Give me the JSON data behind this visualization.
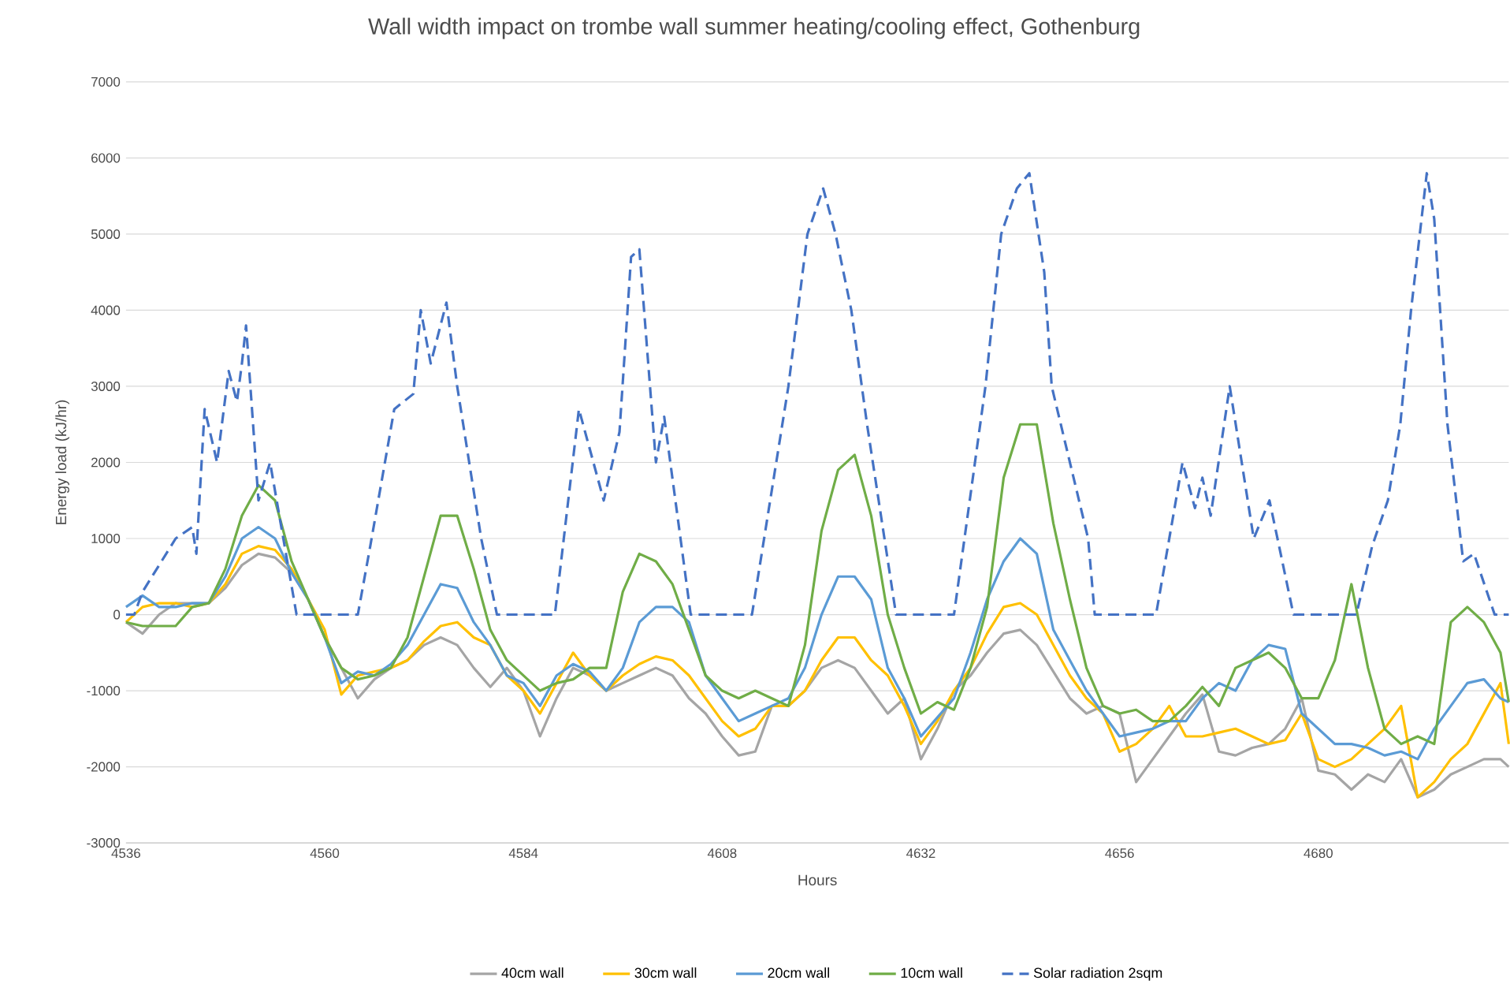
{
  "chart_data": {
    "type": "line",
    "title": "Wall width impact on trombe wall summer heating/cooling effect, Gothenburg",
    "xlabel": "Hours",
    "ylabel": "Energy load (kJ/hr)",
    "xlim": [
      4536,
      4703
    ],
    "xticks": [
      4536,
      4560,
      4584,
      4608,
      4632,
      4656,
      4680
    ],
    "ylim": [
      -3000,
      7000
    ],
    "yticks": [
      -3000,
      -2000,
      -1000,
      0,
      1000,
      2000,
      3000,
      4000,
      5000,
      6000,
      7000
    ],
    "grid": "y",
    "legend": "bottom",
    "marker": "none",
    "series": [
      {
        "name": "40cm wall",
        "color": "#a5a5a5",
        "line_style": "solid",
        "x": [
          4536,
          4538,
          4540,
          4542,
          4544,
          4546,
          4548,
          4550,
          4552,
          4554,
          4556,
          4558,
          4560,
          4562,
          4564,
          4566,
          4568,
          4570,
          4572,
          4574,
          4576,
          4578,
          4580,
          4582,
          4584,
          4586,
          4588,
          4590,
          4592,
          4594,
          4596,
          4598,
          4600,
          4602,
          4604,
          4606,
          4608,
          4610,
          4612,
          4614,
          4616,
          4618,
          4620,
          4622,
          4624,
          4626,
          4628,
          4630,
          4632,
          4634,
          4636,
          4638,
          4640,
          4642,
          4644,
          4646,
          4648,
          4650,
          4652,
          4654,
          4656,
          4658,
          4660,
          4662,
          4664,
          4666,
          4668,
          4670,
          4672,
          4674,
          4676,
          4678,
          4680,
          4682,
          4684,
          4686,
          4688,
          4690,
          4692,
          4694,
          4696,
          4698,
          4700,
          4702,
          4703
        ],
        "values": [
          -100,
          -250,
          0,
          150,
          150,
          150,
          350,
          650,
          800,
          750,
          550,
          200,
          -300,
          -700,
          -1100,
          -850,
          -700,
          -600,
          -400,
          -300,
          -400,
          -700,
          -950,
          -700,
          -1000,
          -1600,
          -1100,
          -700,
          -800,
          -1000,
          -900,
          -800,
          -700,
          -800,
          -1100,
          -1300,
          -1600,
          -1850,
          -1800,
          -1200,
          -1200,
          -1000,
          -700,
          -600,
          -700,
          -1000,
          -1300,
          -1100,
          -1900,
          -1500,
          -1000,
          -800,
          -500,
          -250,
          -200,
          -400,
          -750,
          -1100,
          -1300,
          -1200,
          -1300,
          -2200,
          -1900,
          -1600,
          -1300,
          -1050,
          -1800,
          -1850,
          -1750,
          -1700,
          -1500,
          -1100,
          -2050,
          -2100,
          -2300,
          -2100,
          -2200,
          -1900,
          -2400,
          -2300,
          -2100,
          -2000,
          -1900,
          -1900,
          -2000
        ]
      },
      {
        "name": "30cm wall",
        "color": "#ffc000",
        "line_style": "solid",
        "x": [
          4536,
          4538,
          4540,
          4542,
          4544,
          4546,
          4548,
          4550,
          4552,
          4554,
          4556,
          4558,
          4560,
          4562,
          4564,
          4566,
          4568,
          4570,
          4572,
          4574,
          4576,
          4578,
          4580,
          4582,
          4584,
          4586,
          4588,
          4590,
          4592,
          4594,
          4596,
          4598,
          4600,
          4602,
          4604,
          4606,
          4608,
          4610,
          4612,
          4614,
          4616,
          4618,
          4620,
          4622,
          4624,
          4626,
          4628,
          4630,
          4632,
          4634,
          4636,
          4638,
          4640,
          4642,
          4644,
          4646,
          4648,
          4650,
          4652,
          4654,
          4656,
          4658,
          4660,
          4662,
          4664,
          4666,
          4668,
          4670,
          4672,
          4674,
          4676,
          4678,
          4680,
          4682,
          4684,
          4686,
          4688,
          4690,
          4692,
          4694,
          4696,
          4698,
          4700,
          4702,
          4703
        ],
        "values": [
          -100,
          100,
          150,
          150,
          100,
          150,
          400,
          800,
          900,
          850,
          600,
          200,
          -200,
          -1050,
          -800,
          -750,
          -700,
          -600,
          -350,
          -150,
          -100,
          -300,
          -400,
          -800,
          -1000,
          -1300,
          -900,
          -500,
          -800,
          -1000,
          -800,
          -650,
          -550,
          -600,
          -800,
          -1100,
          -1400,
          -1600,
          -1500,
          -1200,
          -1200,
          -1000,
          -600,
          -300,
          -300,
          -600,
          -800,
          -1200,
          -1700,
          -1400,
          -1000,
          -700,
          -250,
          100,
          150,
          0,
          -400,
          -800,
          -1100,
          -1300,
          -1800,
          -1700,
          -1500,
          -1200,
          -1600,
          -1600,
          -1550,
          -1500,
          -1600,
          -1700,
          -1650,
          -1300,
          -1900,
          -2000,
          -1900,
          -1700,
          -1500,
          -1200,
          -2400,
          -2200,
          -1900,
          -1700,
          -1300,
          -900,
          -1700
        ]
      },
      {
        "name": "20cm wall",
        "color": "#5b9bd5",
        "line_style": "solid",
        "x": [
          4536,
          4538,
          4540,
          4542,
          4544,
          4546,
          4548,
          4550,
          4552,
          4554,
          4556,
          4558,
          4560,
          4562,
          4564,
          4566,
          4568,
          4570,
          4572,
          4574,
          4576,
          4578,
          4580,
          4582,
          4584,
          4586,
          4588,
          4590,
          4592,
          4594,
          4596,
          4598,
          4600,
          4602,
          4604,
          4606,
          4608,
          4610,
          4612,
          4614,
          4616,
          4618,
          4620,
          4622,
          4624,
          4626,
          4628,
          4630,
          4632,
          4634,
          4636,
          4638,
          4640,
          4642,
          4644,
          4646,
          4648,
          4650,
          4652,
          4654,
          4656,
          4658,
          4660,
          4662,
          4664,
          4666,
          4668,
          4670,
          4672,
          4674,
          4676,
          4678,
          4680,
          4682,
          4684,
          4686,
          4688,
          4690,
          4692,
          4694,
          4696,
          4698,
          4700,
          4702,
          4703
        ],
        "values": [
          100,
          250,
          100,
          100,
          150,
          150,
          500,
          1000,
          1150,
          1000,
          550,
          200,
          -300,
          -900,
          -750,
          -800,
          -650,
          -400,
          0,
          400,
          350,
          -100,
          -400,
          -800,
          -900,
          -1200,
          -800,
          -650,
          -750,
          -1000,
          -700,
          -100,
          100,
          100,
          -100,
          -800,
          -1100,
          -1400,
          -1300,
          -1200,
          -1100,
          -700,
          0,
          500,
          500,
          200,
          -700,
          -1100,
          -1600,
          -1350,
          -1100,
          -500,
          200,
          700,
          1000,
          800,
          -200,
          -600,
          -1000,
          -1300,
          -1600,
          -1550,
          -1500,
          -1400,
          -1400,
          -1100,
          -900,
          -1000,
          -600,
          -400,
          -450,
          -1300,
          -1500,
          -1700,
          -1700,
          -1750,
          -1850,
          -1800,
          -1900,
          -1500,
          -1200,
          -900,
          -850,
          -1100,
          -1150
        ]
      },
      {
        "name": "10cm wall",
        "color": "#70ad47",
        "line_style": "solid",
        "x": [
          4536,
          4538,
          4540,
          4542,
          4544,
          4546,
          4548,
          4550,
          4552,
          4554,
          4556,
          4558,
          4560,
          4562,
          4564,
          4566,
          4568,
          4570,
          4572,
          4574,
          4576,
          4578,
          4580,
          4582,
          4584,
          4586,
          4588,
          4590,
          4592,
          4594,
          4596,
          4598,
          4600,
          4602,
          4604,
          4606,
          4608,
          4610,
          4612,
          4614,
          4616,
          4618,
          4620,
          4622,
          4624,
          4626,
          4628,
          4630,
          4632,
          4634,
          4636,
          4638,
          4640,
          4642,
          4644,
          4646,
          4648,
          4650,
          4652,
          4654,
          4656,
          4658,
          4660,
          4662,
          4664,
          4666,
          4668,
          4670,
          4672,
          4674,
          4676,
          4678,
          4680,
          4682,
          4684,
          4686,
          4688,
          4690,
          4692,
          4694,
          4696,
          4698,
          4700,
          4702,
          4703
        ],
        "values": [
          -100,
          -150,
          -150,
          -150,
          100,
          150,
          600,
          1300,
          1700,
          1500,
          700,
          200,
          -300,
          -700,
          -850,
          -800,
          -700,
          -300,
          500,
          1300,
          1300,
          600,
          -200,
          -600,
          -800,
          -1000,
          -900,
          -850,
          -700,
          -700,
          300,
          800,
          700,
          400,
          -200,
          -800,
          -1000,
          -1100,
          -1000,
          -1100,
          -1200,
          -400,
          1100,
          1900,
          2100,
          1300,
          0,
          -700,
          -1300,
          -1150,
          -1250,
          -700,
          100,
          1800,
          2500,
          2500,
          1200,
          200,
          -700,
          -1200,
          -1300,
          -1250,
          -1400,
          -1400,
          -1200,
          -950,
          -1200,
          -700,
          -600,
          -500,
          -700,
          -1100,
          -1100,
          -600,
          400,
          -700,
          -1500,
          -1700,
          -1600,
          -1700,
          -100,
          100,
          -100,
          -500,
          -1150
        ]
      },
      {
        "name": "Solar radiation 2sqm",
        "color": "#4472c4",
        "line_style": "dashed",
        "x": [
          4536,
          4537,
          4538,
          4542,
          4544,
          4544.5,
          4545.5,
          4547,
          4548.4,
          4549.4,
          4550,
          4550.5,
          4552,
          4553.4,
          4556.6,
          4564,
          4565.5,
          4568.4,
          4570.7,
          4571.6,
          4572.8,
          4574.7,
          4576,
          4578.9,
          4580.8,
          4587.8,
          4590.7,
          4593.7,
          4595.6,
          4597,
          4598,
          4600,
          4601,
          4604.2,
          4611.6,
          4616,
          4618.3,
          4620.2,
          4621.7,
          4623.6,
          4625.5,
          4629,
          4636,
          4639.8,
          4641.7,
          4643.6,
          4645.1,
          4646.9,
          4647.8,
          4652.2,
          4653,
          4660.4,
          4663.6,
          4665.1,
          4666,
          4667,
          4669.3,
          4672.2,
          4674.1,
          4677,
          4684.6,
          4686.5,
          4688.4,
          4689.9,
          4691.2,
          4693.1,
          4694,
          4695.6,
          4697.5,
          4698.8,
          4701.3,
          4703
        ],
        "values": [
          0,
          0,
          300,
          1000,
          1150,
          800,
          2700,
          2000,
          3200,
          2800,
          3300,
          3800,
          1500,
          2000,
          0,
          0,
          900,
          2700,
          2900,
          4000,
          3300,
          4100,
          3000,
          1000,
          0,
          0,
          2700,
          1500,
          2400,
          4700,
          4800,
          2000,
          2600,
          0,
          0,
          3000,
          5000,
          5600,
          5000,
          4000,
          2500,
          0,
          0,
          3000,
          5000,
          5600,
          5800,
          4500,
          3000,
          1000,
          0,
          0,
          2000,
          1400,
          1800,
          1300,
          3000,
          1000,
          1500,
          0,
          0,
          900,
          1500,
          2500,
          4000,
          5800,
          5200,
          2500,
          700,
          800,
          0,
          0
        ]
      }
    ]
  }
}
